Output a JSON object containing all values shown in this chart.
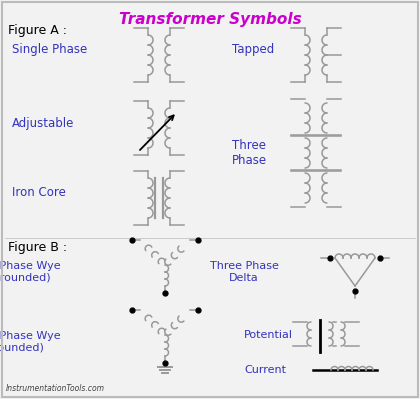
{
  "title": "Transformer Symbols",
  "title_color": "#CC00CC",
  "label_color": "#3333BB",
  "line_color": "#999999",
  "bg_color": "#F2F2F2",
  "border_color": "#BBBBBB",
  "footer": "InstrumentationTools.com",
  "figA": "Figure A :",
  "figB": "Figure B :",
  "single_phase": "Single Phase",
  "adjustable": "Adjustable",
  "iron_core": "Iron Core",
  "tapped": "Tapped",
  "three_phase": "Three\nPhase",
  "wye_ung": "Three Phase Wye\n(Ungrounded)",
  "wye_g": "Three Phase Wye\n(Grounded)",
  "delta": "Three Phase\nDelta",
  "potential": "Potential",
  "current": "Current"
}
